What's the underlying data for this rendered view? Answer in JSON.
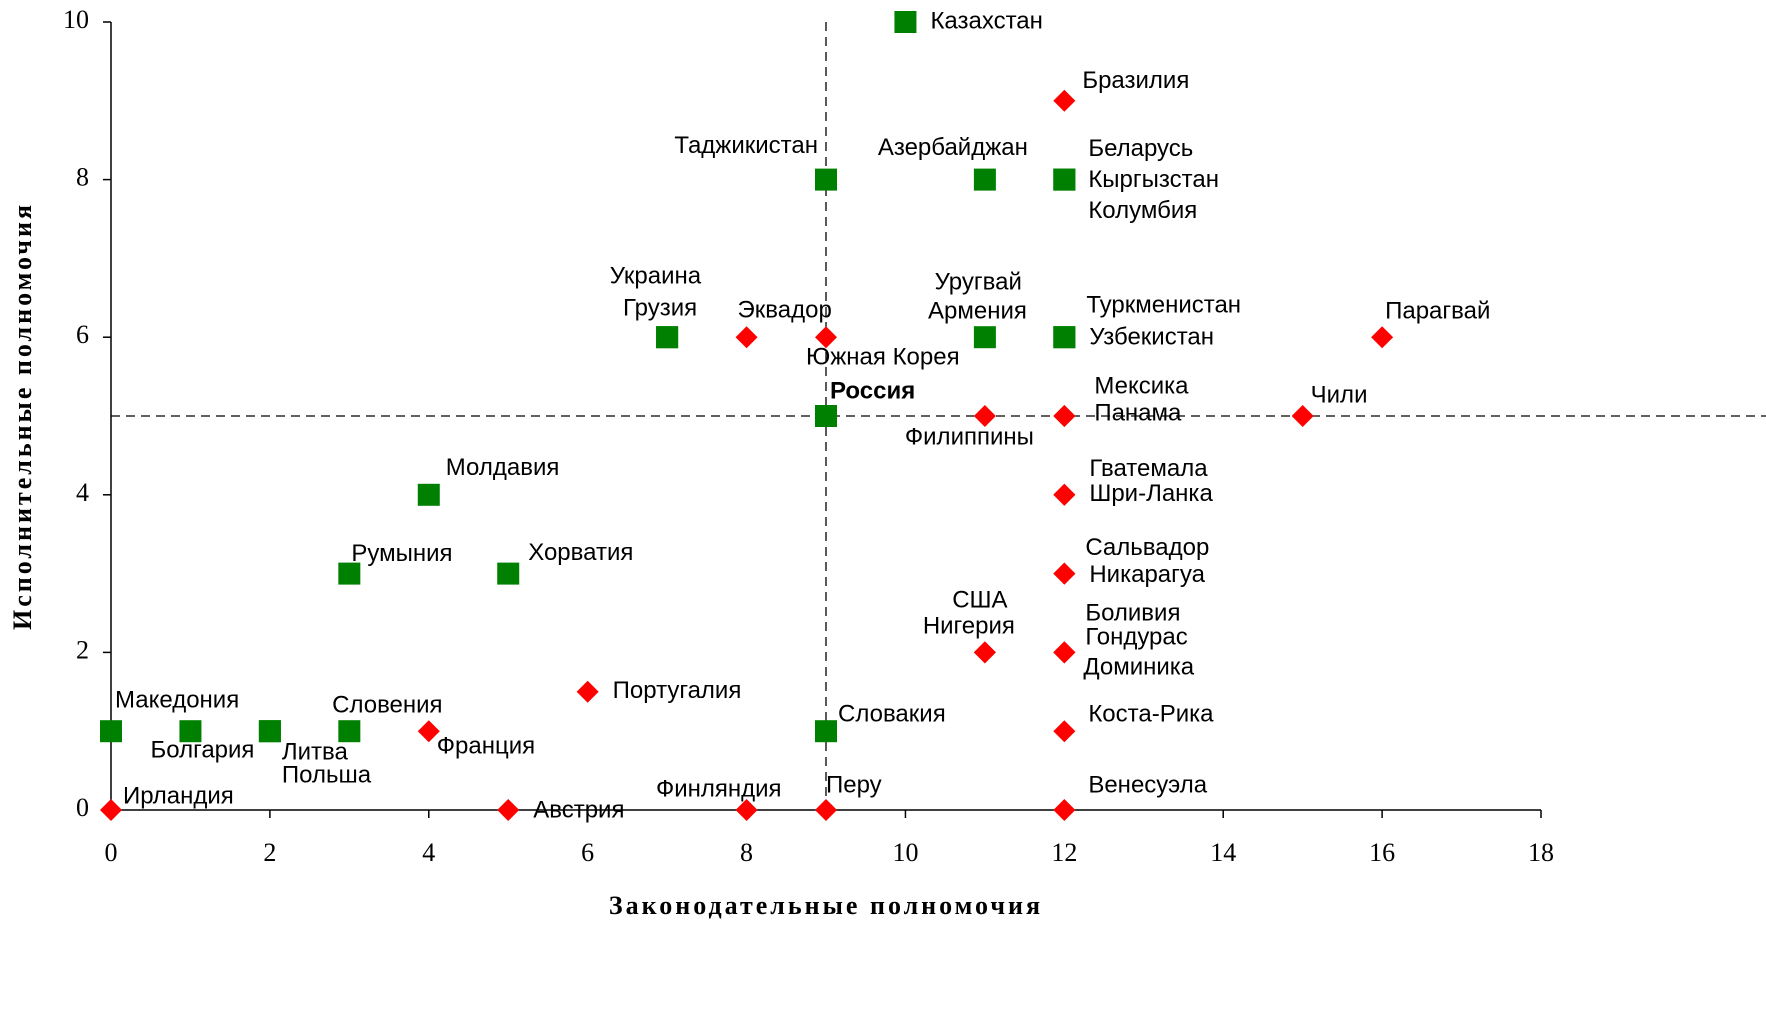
{
  "chart_data": {
    "type": "scatter",
    "x_label": "Законодательные полномочия",
    "y_label": "Исполнительные полномочия",
    "xlim": [
      0,
      18
    ],
    "ylim": [
      0,
      10
    ],
    "xticks": [
      0,
      2,
      4,
      6,
      8,
      10,
      12,
      14,
      16,
      18
    ],
    "yticks": [
      0,
      2,
      4,
      6,
      8,
      10
    ],
    "reference_lines": {
      "x": 9,
      "y": 5
    },
    "series": [
      {
        "color": "#ff0000",
        "marker": "diamond",
        "x": [
          12,
          11,
          12,
          8,
          9,
          16,
          12,
          12,
          11,
          15,
          12,
          12,
          12,
          12,
          11,
          11,
          12,
          12,
          12,
          6,
          4,
          12,
          0,
          5,
          8,
          9,
          12
        ],
        "values": [
          8,
          6,
          9,
          6,
          6,
          6,
          5,
          5,
          5,
          5,
          4,
          4,
          3,
          3,
          2,
          2,
          2,
          2,
          2,
          1.5,
          1,
          1,
          0,
          0,
          0,
          0,
          0
        ],
        "labels": [
          "Колумбия",
          "Уругвай",
          "Бразилия",
          "Эквадор",
          "Южная Корея",
          "Парагвай",
          "Мексика",
          "Панама",
          "Филиппины",
          "Чили",
          "Гватемала",
          "Шри-Ланка",
          "Сальвадор",
          "Никарагуа",
          "США",
          "Нигерия",
          "Боливия",
          "Гондурас",
          "Доминика",
          "Португалия",
          "Франция",
          "Коста-Рика",
          "Ирландия",
          "Австрия",
          "Финляндия",
          "Перу",
          "Венесуэла"
        ]
      },
      {
        "color": "#008000",
        "marker": "square",
        "x": [
          10,
          9,
          11,
          12,
          12,
          7,
          7,
          11,
          12,
          12,
          9,
          4,
          3,
          5,
          0,
          1,
          2,
          2,
          3,
          9
        ],
        "values": [
          10,
          8,
          8,
          8,
          8,
          6,
          6,
          6,
          6,
          6,
          5,
          4,
          3,
          3,
          1,
          1,
          1,
          1,
          1,
          1
        ],
        "labels": [
          "Казахстан",
          "Таджикистан",
          "Азербайджан",
          "Беларусь",
          "Кыргызстан",
          "Украина",
          "Грузия",
          "Армения",
          "Туркменистан",
          "Узбекистан",
          "Россия",
          "Молдавия",
          "Румыния",
          "Хорватия",
          "Македония",
          "Болгария",
          "Литва",
          "Польша",
          "Словения",
          "Словакия"
        ]
      }
    ]
  }
}
